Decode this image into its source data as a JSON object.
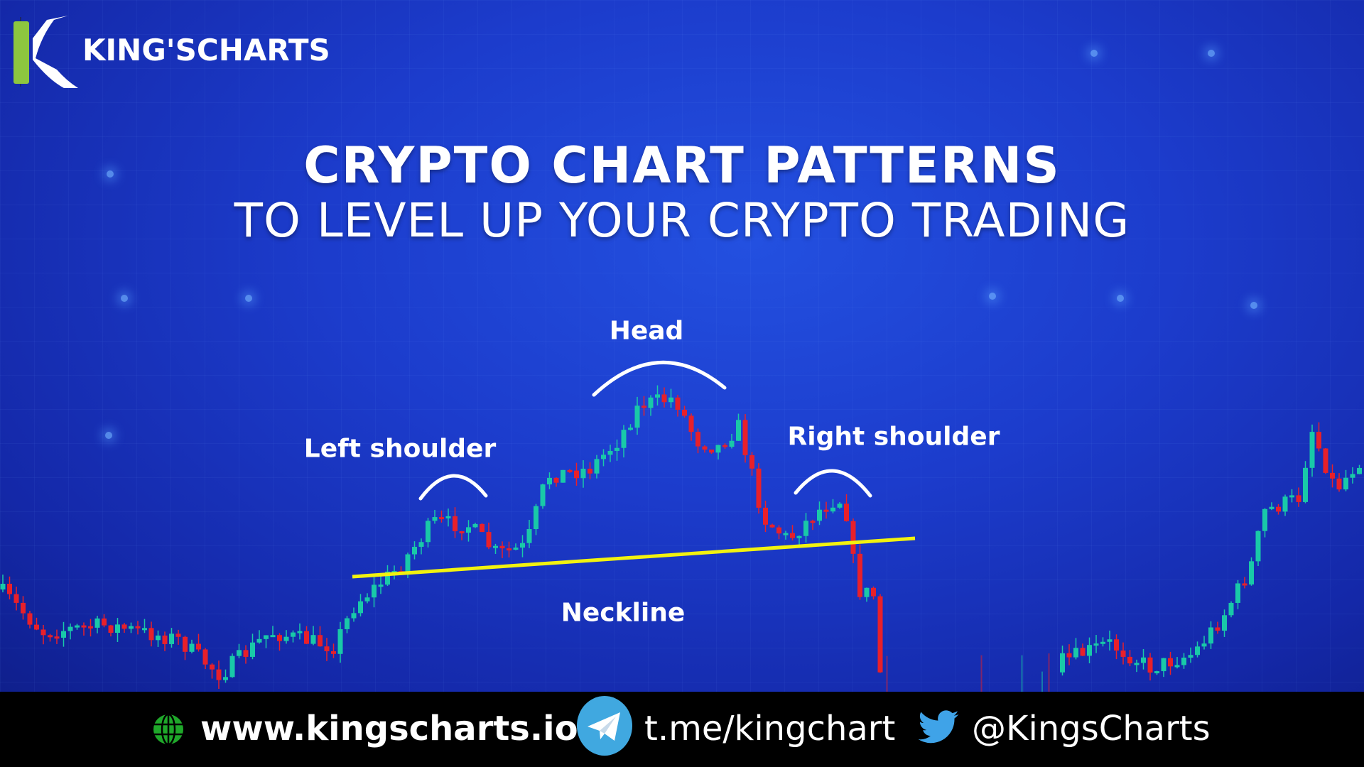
{
  "brand": {
    "name": "KING'SCHARTS",
    "logo_color": "#8dc63f"
  },
  "title": {
    "line1": "CRYPTO CHART PATTERNS",
    "line2": "TO LEVEL UP YOUR CRYPTO TRADING"
  },
  "pattern": {
    "head": "Head",
    "left_shoulder": "Left shoulder",
    "right_shoulder": "Right shoulder",
    "neckline": "Neckline",
    "neckline_color": "#f2f20f",
    "up_color": "#19c9a8",
    "down_color": "#e8202a"
  },
  "footer": {
    "website": "www.kingscharts.io",
    "telegram": "t.me/kingchart",
    "twitter": "@KingsCharts",
    "icons": [
      "globe-icon",
      "telegram-icon",
      "twitter-icon"
    ]
  }
}
